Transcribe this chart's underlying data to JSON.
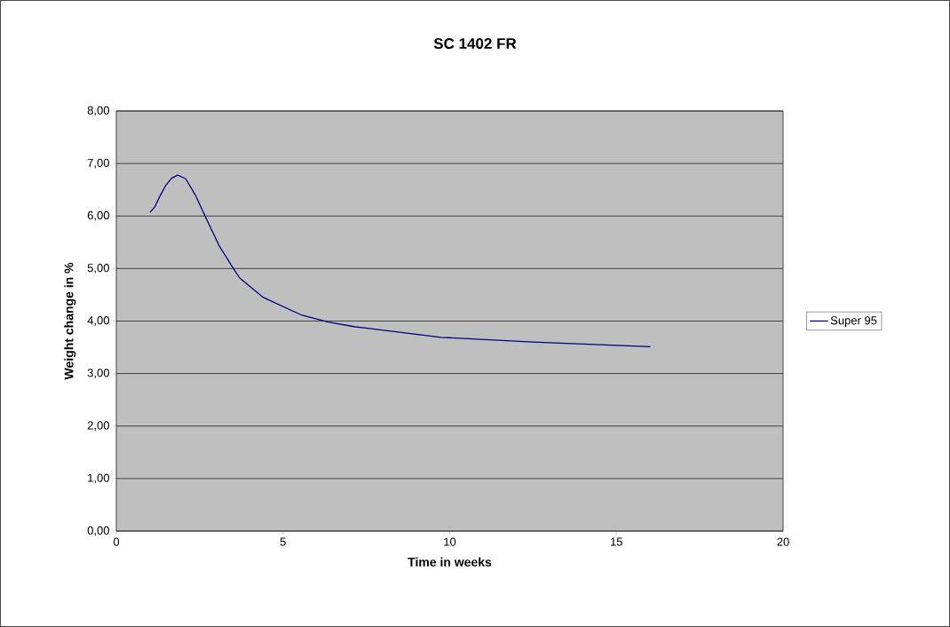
{
  "chart_data": {
    "type": "line",
    "title": "SC 1402 FR",
    "xlabel": "Time in weeks",
    "ylabel": "Weight change in %",
    "series": [
      {
        "name": "Super 95",
        "color": "#000080",
        "x": [
          1.01,
          1.15,
          1.3,
          1.48,
          1.66,
          1.84,
          2.08,
          2.37,
          2.64,
          3.08,
          3.52,
          3.7,
          4.41,
          5.57,
          6.36,
          7.16,
          7.43,
          9.74,
          12.49,
          16.02
        ],
        "values": [
          6.07,
          6.17,
          6.37,
          6.58,
          6.72,
          6.78,
          6.71,
          6.4,
          6.03,
          5.44,
          4.99,
          4.82,
          4.45,
          4.11,
          3.98,
          3.89,
          3.87,
          3.69,
          3.6,
          3.51
        ]
      }
    ],
    "xlim": [
      0,
      20
    ],
    "xticks": [
      0,
      5,
      10,
      15,
      20
    ],
    "ylim": [
      0,
      8
    ],
    "yticks": [
      {
        "value": 0,
        "label": "0,00"
      },
      {
        "value": 1,
        "label": "1,00"
      },
      {
        "value": 2,
        "label": "2,00"
      },
      {
        "value": 3,
        "label": "3,00"
      },
      {
        "value": 4,
        "label": "4,00"
      },
      {
        "value": 5,
        "label": "5,00"
      },
      {
        "value": 6,
        "label": "6,00"
      },
      {
        "value": 7,
        "label": "7,00"
      },
      {
        "value": 8,
        "label": "8,00"
      }
    ],
    "grid": "y",
    "legend": "right",
    "marker": "none"
  }
}
